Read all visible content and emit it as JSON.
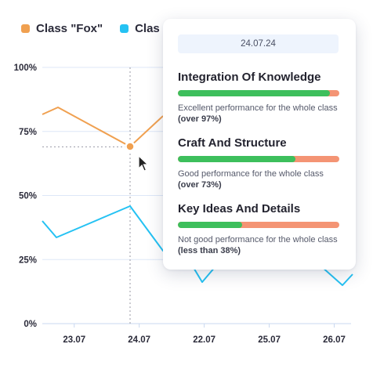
{
  "legend": [
    {
      "name": "Class \"Fox\"",
      "color": "#f0a050"
    },
    {
      "name": "Clas",
      "color": "#25c2f3"
    }
  ],
  "chart_data": {
    "type": "line",
    "x": [
      0,
      1,
      2,
      3,
      4,
      5,
      6,
      7,
      8,
      9,
      10,
      11,
      12,
      13,
      14,
      15,
      16,
      17,
      18,
      19
    ],
    "categories_ticks": [
      "23.07",
      "24.07",
      "22.07",
      "25.07",
      "26.07"
    ],
    "tick_positions": [
      1,
      5,
      9,
      13,
      17
    ],
    "yticks": [
      "100%",
      "75%",
      "50%",
      "25%",
      "0%"
    ],
    "ylim": [
      0,
      100
    ],
    "series": [
      {
        "color": "#f0a050",
        "values": [
          81,
          84,
          null,
          null,
          null,
          69,
          null,
          null,
          null,
          null,
          null,
          null,
          null,
          null,
          null,
          null,
          null,
          null,
          null,
          null
        ]
      },
      {
        "color": "#25c2f3",
        "values": [
          40,
          33.5,
          null,
          null,
          null,
          46,
          null,
          null,
          null,
          null,
          null,
          null,
          null,
          null,
          null,
          null,
          null,
          null,
          null,
          null
        ]
      }
    ],
    "highlight": {
      "x_index": 5,
      "y": 69
    }
  },
  "tooltip": {
    "date": "24.07.24",
    "sections": [
      {
        "title": "Integration Of Knowledge",
        "fraction": 0.94,
        "desc": "Excellent performance for the whole class ",
        "bold": "(over 97%)"
      },
      {
        "title": "Craft And Structure",
        "fraction": 0.73,
        "desc": "Good performance for the whole class ",
        "bold": "(over 73%)"
      },
      {
        "title": "Key Ideas And Details",
        "fraction": 0.4,
        "desc": "Not good performance for the whole class ",
        "bold": "(less than 38%)"
      }
    ]
  }
}
